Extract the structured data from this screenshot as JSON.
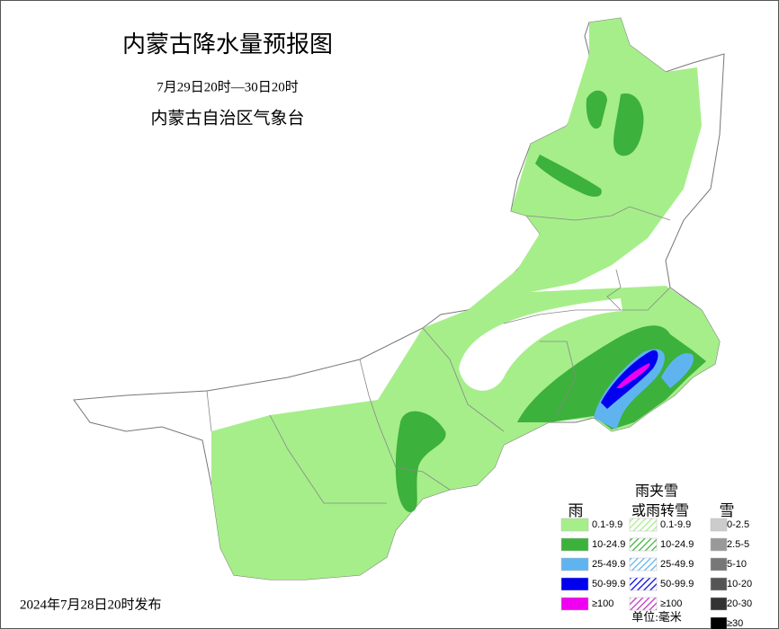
{
  "header": {
    "title": "内蒙古降水量预报图",
    "date_range": "7月29日20时—30日20时",
    "issuer": "内蒙古自治区气象台"
  },
  "footer": {
    "issued": "2024年7月28日20时发布"
  },
  "legend": {
    "rain": {
      "title": "雨",
      "items": [
        {
          "label": "0.1-9.9",
          "color": "#a6ee8a"
        },
        {
          "label": "10-24.9",
          "color": "#3cb13c"
        },
        {
          "label": "25-49.9",
          "color": "#5fb4f0"
        },
        {
          "label": "50-99.9",
          "color": "#0000ee"
        },
        {
          "label": "≥100",
          "color": "#f000f0"
        }
      ]
    },
    "sleet": {
      "title_lines": [
        "雨夹雪",
        "或雨转雪"
      ],
      "items": [
        {
          "label": "0.1-9.9",
          "color": "#a6ee8a"
        },
        {
          "label": "10-24.9",
          "color": "#3cb13c"
        },
        {
          "label": "25-49.9",
          "color": "#5fb4f0"
        },
        {
          "label": "50-99.9",
          "color": "#0000ee"
        },
        {
          "label": "≥100",
          "color": "#c030c0"
        }
      ]
    },
    "snow": {
      "title": "雪",
      "items": [
        {
          "label": "0-2.5",
          "color": "#cccccc"
        },
        {
          "label": "2.5-5",
          "color": "#999999"
        },
        {
          "label": "5-10",
          "color": "#777777"
        },
        {
          "label": "10-20",
          "color": "#555555"
        },
        {
          "label": "20-30",
          "color": "#333333"
        },
        {
          "label": "≥30",
          "color": "#000000"
        }
      ]
    },
    "unit": "单位:毫米"
  }
}
